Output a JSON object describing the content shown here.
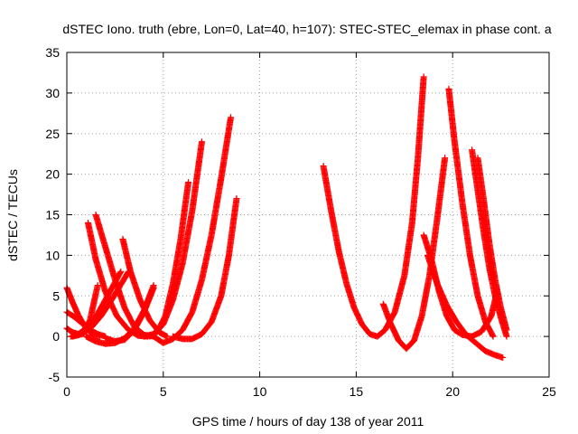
{
  "chart_data": {
    "type": "scatter",
    "title": "dSTEC Iono. truth (ebre, Lon=0, Lat=40, h=107): STEC-STEC_elemax in phase cont. a",
    "xlabel": "GPS time / hours of day 138 of year 2011",
    "ylabel": "dSTEC  / TECUs",
    "xlim": [
      0,
      25
    ],
    "ylim": [
      -5,
      35
    ],
    "x_ticks": [
      0,
      5,
      10,
      15,
      20,
      25
    ],
    "y_ticks": [
      -5,
      0,
      5,
      10,
      15,
      20,
      25,
      30,
      35
    ],
    "x_tick_labels": [
      "0",
      "5",
      "10",
      "15",
      "20",
      "25"
    ],
    "y_tick_labels": [
      "-5",
      "0",
      "5",
      "10",
      "15",
      "20",
      "25",
      "30",
      "35"
    ],
    "grid": true,
    "marker": "plus",
    "color": "#ff0000",
    "series": [
      {
        "x": [
          0.0,
          0.3,
          0.6,
          1.0,
          1.4,
          1.7
        ],
        "y": [
          6.0,
          4.2,
          2.6,
          1.0,
          0.1,
          0.0
        ]
      },
      {
        "x": [
          0.0,
          0.4,
          0.8,
          1.2,
          1.6,
          2.0
        ],
        "y": [
          3.0,
          2.4,
          1.6,
          0.8,
          0.3,
          0.0
        ]
      },
      {
        "x": [
          0.0,
          0.3,
          0.6,
          0.9,
          1.2,
          1.6
        ],
        "y": [
          1.0,
          0.5,
          0.3,
          0.8,
          2.0,
          6.3
        ]
      },
      {
        "x": [
          0.2,
          0.6,
          1.0,
          1.4,
          2.0,
          2.8
        ],
        "y": [
          0.0,
          0.2,
          0.8,
          2.0,
          4.5,
          8.0
        ]
      },
      {
        "x": [
          0.3,
          0.8,
          1.3,
          1.8,
          2.4,
          3.2
        ],
        "y": [
          0.0,
          0.3,
          1.2,
          2.6,
          4.8,
          8.0
        ]
      },
      {
        "x": [
          1.1,
          1.5,
          2.0,
          2.6,
          3.2,
          3.7,
          4.2
        ],
        "y": [
          14.0,
          9.5,
          5.5,
          2.5,
          0.8,
          0.1,
          0.0
        ]
      },
      {
        "x": [
          1.5,
          2.0,
          2.5,
          3.0,
          3.5,
          4.0,
          4.5
        ],
        "y": [
          15.0,
          11.0,
          7.0,
          3.5,
          1.2,
          0.2,
          0.0
        ]
      },
      {
        "x": [
          2.9,
          3.3,
          3.8,
          4.3,
          4.8,
          5.2
        ],
        "y": [
          12.0,
          8.0,
          4.5,
          2.0,
          0.5,
          0.0
        ]
      },
      {
        "x": [
          1.0,
          1.5,
          2.0,
          2.5,
          3.0,
          3.5,
          4.0,
          4.5
        ],
        "y": [
          0.0,
          -0.6,
          -0.9,
          -0.8,
          -0.2,
          1.0,
          3.2,
          6.3
        ]
      },
      {
        "x": [
          2.0,
          2.5,
          3.0,
          3.5,
          4.0,
          4.5
        ],
        "y": [
          -0.2,
          -0.6,
          -0.4,
          0.8,
          3.0,
          6.0
        ]
      },
      {
        "x": [
          4.0,
          4.5,
          5.0,
          5.5,
          6.0,
          6.5,
          7.0
        ],
        "y": [
          0.0,
          0.3,
          1.5,
          4.5,
          9.0,
          15.5,
          24.0
        ]
      },
      {
        "x": [
          4.3,
          4.7,
          5.1,
          5.5,
          5.9,
          6.3
        ],
        "y": [
          0.0,
          0.6,
          2.5,
          6.5,
          12.0,
          19.0
        ]
      },
      {
        "x": [
          4.5,
          5.0,
          5.5,
          6.0,
          6.5,
          7.0,
          7.5,
          8.0,
          8.5
        ],
        "y": [
          0.0,
          -0.8,
          -0.3,
          0.8,
          3.0,
          7.0,
          12.5,
          19.5,
          27.0
        ]
      },
      {
        "x": [
          5.5,
          6.0,
          6.5,
          7.0,
          7.5,
          8.0,
          8.4,
          8.8
        ],
        "y": [
          0.0,
          -0.3,
          -0.3,
          0.3,
          1.8,
          5.0,
          10.0,
          17.0
        ]
      },
      {
        "x": [
          13.3,
          13.7,
          14.1,
          14.5,
          14.9,
          15.3,
          15.7,
          16.1,
          16.5,
          17.0,
          17.5,
          17.9,
          18.2,
          18.5
        ],
        "y": [
          21.0,
          15.5,
          10.5,
          6.5,
          3.5,
          1.5,
          0.3,
          0.0,
          0.8,
          3.0,
          7.5,
          14.0,
          22.0,
          32.0
        ]
      },
      {
        "x": [
          16.4,
          16.8,
          17.2,
          17.6,
          18.0,
          18.4,
          18.8,
          19.2,
          19.6
        ],
        "y": [
          4.0,
          1.5,
          -0.5,
          -1.5,
          -0.5,
          2.5,
          7.5,
          14.5,
          22.0
        ]
      },
      {
        "x": [
          18.5,
          18.9,
          19.3,
          19.7,
          20.1,
          20.5,
          21.0,
          21.5,
          22.0,
          22.3
        ],
        "y": [
          12.5,
          9.5,
          5.5,
          2.5,
          0.8,
          0.2,
          0.0,
          0.6,
          2.5,
          5.5
        ]
      },
      {
        "x": [
          18.7,
          19.2,
          19.7,
          20.2,
          20.7,
          21.2,
          21.7,
          22.2,
          22.6
        ],
        "y": [
          10.0,
          6.5,
          3.8,
          1.8,
          0.2,
          -0.8,
          -1.8,
          -2.3,
          -2.6
        ]
      },
      {
        "x": [
          19.8,
          20.1,
          20.5,
          20.9,
          21.3,
          21.7,
          22.1
        ],
        "y": [
          30.5,
          24.0,
          16.5,
          10.0,
          5.0,
          1.8,
          0.0
        ]
      },
      {
        "x": [
          21.0,
          21.3,
          21.6,
          21.9,
          22.2,
          22.5,
          22.8
        ],
        "y": [
          23.0,
          18.0,
          13.0,
          8.5,
          5.0,
          2.3,
          0.0
        ]
      },
      {
        "x": [
          21.3,
          21.6,
          21.9,
          22.2,
          22.5,
          22.8
        ],
        "y": [
          22.0,
          17.0,
          11.5,
          7.0,
          3.5,
          0.8
        ]
      }
    ]
  }
}
